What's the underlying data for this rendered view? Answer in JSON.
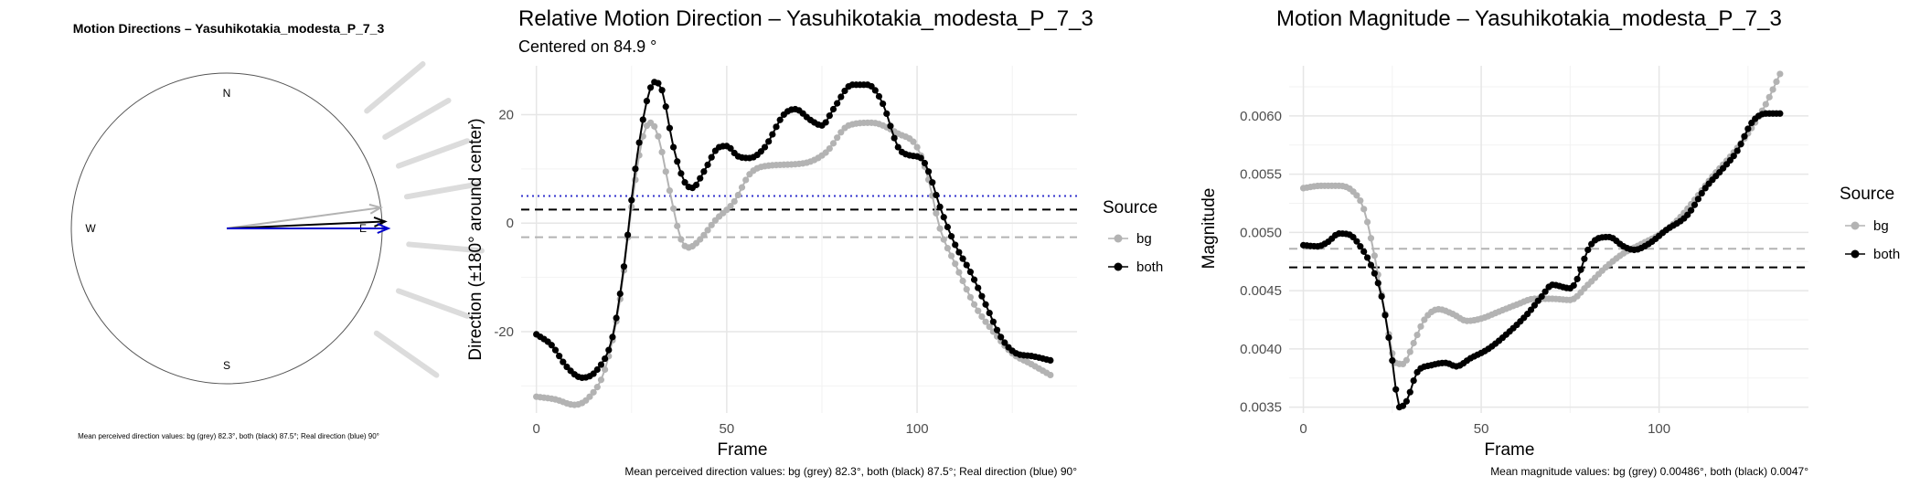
{
  "chart_data": [
    {
      "type": "compass",
      "title": "Motion Directions – Yasuhikotakia_modesta_P_7_3",
      "cardinal_labels": {
        "north": "N",
        "south": "S",
        "west": "W",
        "east": "E"
      },
      "arrows": [
        {
          "source": "bg",
          "direction_deg": 82.3,
          "length": 1.0,
          "color": "#b3b3b3"
        },
        {
          "source": "both",
          "direction_deg": 87.5,
          "length": 1.02,
          "color": "#000000"
        },
        {
          "source": "real",
          "direction_deg": 90,
          "length": 1.04,
          "color": "#0000cc"
        }
      ],
      "background_rays_deg": [
        50,
        60,
        70,
        80,
        95,
        110,
        125
      ],
      "caption": "Mean perceived direction values: bg (grey) 82.3°, both (black) 87.5°; Real direction (blue) 90°"
    },
    {
      "type": "line",
      "title": "Relative Motion Direction – Yasuhikotakia_modesta_P_7_3",
      "subtitle": "Centered on  84.9 °",
      "xlabel": "Frame",
      "ylabel": "Direction (±180° around center)",
      "xlim": [
        -4,
        142
      ],
      "ylim": [
        -35,
        29
      ],
      "xticks": [
        0,
        50,
        100
      ],
      "yticks": [
        -20,
        0,
        20
      ],
      "legend_title": "Source",
      "legend_position": "right",
      "series": [
        {
          "name": "bg",
          "color": "#b3b3b3",
          "knots": [
            [
              0,
              -32
            ],
            [
              5,
              -32.5
            ],
            [
              10,
              -33.5
            ],
            [
              14,
              -32
            ],
            [
              18,
              -27
            ],
            [
              22,
              -14
            ],
            [
              25,
              3
            ],
            [
              28,
              16
            ],
            [
              30,
              18.5
            ],
            [
              32,
              16
            ],
            [
              35,
              6
            ],
            [
              38,
              -3
            ],
            [
              40,
              -4.5
            ],
            [
              43,
              -3
            ],
            [
              47,
              0.5
            ],
            [
              52,
              4
            ],
            [
              56,
              9
            ],
            [
              60,
              10.5
            ],
            [
              70,
              11
            ],
            [
              76,
              13
            ],
            [
              82,
              18
            ],
            [
              88,
              18.5
            ],
            [
              95,
              16.5
            ],
            [
              100,
              14
            ],
            [
              103,
              8
            ],
            [
              106,
              -1
            ],
            [
              110,
              -7.5
            ],
            [
              115,
              -15
            ],
            [
              120,
              -20
            ],
            [
              125,
              -24
            ],
            [
              130,
              -26
            ],
            [
              135,
              -28
            ]
          ]
        },
        {
          "name": "both",
          "color": "#000000",
          "knots": [
            [
              0,
              -20.5
            ],
            [
              4,
              -22.5
            ],
            [
              8,
              -26.5
            ],
            [
              12,
              -28.5
            ],
            [
              16,
              -27
            ],
            [
              20,
              -21
            ],
            [
              23,
              -8
            ],
            [
              26,
              10
            ],
            [
              29,
              22.5
            ],
            [
              31,
              26
            ],
            [
              33,
              24.5
            ],
            [
              36,
              14
            ],
            [
              39,
              7.5
            ],
            [
              41,
              6.5
            ],
            [
              44,
              9.5
            ],
            [
              48,
              14
            ],
            [
              50,
              14.2
            ],
            [
              53,
              12.3
            ],
            [
              56,
              12
            ],
            [
              60,
              14
            ],
            [
              65,
              20
            ],
            [
              68,
              21
            ],
            [
              72,
              19
            ],
            [
              75,
              18
            ],
            [
              78,
              21
            ],
            [
              83,
              25.5
            ],
            [
              87,
              25.5
            ],
            [
              91,
              22
            ],
            [
              95,
              14
            ],
            [
              98,
              12.5
            ],
            [
              101,
              12
            ],
            [
              103,
              9.5
            ],
            [
              106,
              3
            ],
            [
              110,
              -4
            ],
            [
              114,
              -9
            ],
            [
              118,
              -15
            ],
            [
              122,
              -21
            ],
            [
              126,
              -24
            ],
            [
              130,
              -24.5
            ],
            [
              135,
              -25.3
            ]
          ]
        }
      ],
      "hlines": [
        {
          "y": 5,
          "color": "#3333cc",
          "style": "dotted"
        },
        {
          "y": 2.5,
          "color": "#000000",
          "style": "dashed"
        },
        {
          "y": -2.6,
          "color": "#b3b3b3",
          "style": "dashed"
        }
      ],
      "caption": "Mean perceived direction values: bg (grey) 82.3°, both (black) 87.5°; Real direction (blue) 90°"
    },
    {
      "type": "line",
      "title": "Motion Magnitude – Yasuhikotakia_modesta_P_7_3",
      "xlabel": "Frame",
      "ylabel": "Magnitude",
      "xlim": [
        -4,
        142
      ],
      "ylim": [
        0.00345,
        0.00643
      ],
      "xticks": [
        0,
        50,
        100
      ],
      "yticks": [
        0.0035,
        0.004,
        0.0045,
        0.005,
        0.0055,
        0.006
      ],
      "ytick_labels": [
        "0.0035",
        "0.0040",
        "0.0045",
        "0.0050",
        "0.0055",
        "0.0060"
      ],
      "legend_title": "Source",
      "legend_position": "right",
      "series": [
        {
          "name": "bg",
          "color": "#b3b3b3",
          "knots": [
            [
              0,
              0.00538
            ],
            [
              5,
              0.0054
            ],
            [
              10,
              0.0054
            ],
            [
              14,
              0.00535
            ],
            [
              17,
              0.0052
            ],
            [
              20,
              0.0048
            ],
            [
              23,
              0.0043
            ],
            [
              26,
              0.00388
            ],
            [
              28,
              0.00387
            ],
            [
              31,
              0.00405
            ],
            [
              34,
              0.00425
            ],
            [
              38,
              0.00434
            ],
            [
              42,
              0.0043
            ],
            [
              46,
              0.00424
            ],
            [
              50,
              0.00426
            ],
            [
              55,
              0.00432
            ],
            [
              60,
              0.00438
            ],
            [
              65,
              0.00443
            ],
            [
              70,
              0.00443
            ],
            [
              75,
              0.00442
            ],
            [
              80,
              0.00455
            ],
            [
              85,
              0.0047
            ],
            [
              90,
              0.00482
            ],
            [
              95,
              0.0049
            ],
            [
              100,
              0.00498
            ],
            [
              105,
              0.0051
            ],
            [
              110,
              0.00528
            ],
            [
              115,
              0.00548
            ],
            [
              120,
              0.00565
            ],
            [
              125,
              0.00585
            ],
            [
              130,
              0.0061
            ],
            [
              134,
              0.00636
            ]
          ]
        },
        {
          "name": "both",
          "color": "#000000",
          "knots": [
            [
              0,
              0.00489
            ],
            [
              4,
              0.00488
            ],
            [
              7,
              0.00492
            ],
            [
              10,
              0.00499
            ],
            [
              13,
              0.00498
            ],
            [
              16,
              0.00488
            ],
            [
              19,
              0.00472
            ],
            [
              22,
              0.00445
            ],
            [
              25,
              0.0039
            ],
            [
              27,
              0.0035
            ],
            [
              29,
              0.00355
            ],
            [
              32,
              0.0038
            ],
            [
              36,
              0.00386
            ],
            [
              40,
              0.00388
            ],
            [
              43,
              0.00385
            ],
            [
              47,
              0.00392
            ],
            [
              52,
              0.004
            ],
            [
              58,
              0.00415
            ],
            [
              63,
              0.0043
            ],
            [
              67,
              0.00445
            ],
            [
              70,
              0.00455
            ],
            [
              75,
              0.00452
            ],
            [
              77,
              0.0046
            ],
            [
              80,
              0.00485
            ],
            [
              83,
              0.00495
            ],
            [
              86,
              0.00496
            ],
            [
              90,
              0.00488
            ],
            [
              93,
              0.00485
            ],
            [
              97,
              0.0049
            ],
            [
              102,
              0.00502
            ],
            [
              108,
              0.00515
            ],
            [
              113,
              0.00538
            ],
            [
              118,
              0.00555
            ],
            [
              122,
              0.0057
            ],
            [
              126,
              0.00594
            ],
            [
              130,
              0.00602
            ],
            [
              134,
              0.00602
            ]
          ]
        }
      ],
      "hlines": [
        {
          "y": 0.00486,
          "color": "#b3b3b3",
          "style": "dashed"
        },
        {
          "y": 0.0047,
          "color": "#000000",
          "style": "dashed"
        }
      ],
      "caption": "Mean magnitude values: bg (grey) 0.00486°, both (black) 0.0047°"
    }
  ]
}
